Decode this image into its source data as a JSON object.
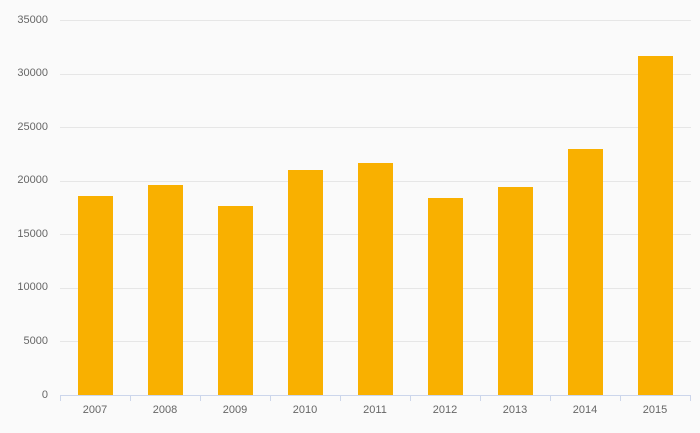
{
  "chart_data": {
    "type": "bar",
    "title": "",
    "xlabel": "",
    "ylabel": "",
    "categories": [
      "2007",
      "2008",
      "2009",
      "2010",
      "2011",
      "2012",
      "2013",
      "2014",
      "2015"
    ],
    "values": [
      18600,
      19600,
      17600,
      21000,
      21700,
      18400,
      19400,
      23000,
      31600
    ],
    "ylim": [
      0,
      35000
    ],
    "ytick_step": 5000,
    "ytick_labels": [
      "0",
      "5000",
      "10000",
      "15000",
      "20000",
      "25000",
      "30000",
      "35000"
    ],
    "grid": true,
    "legend": false,
    "colors": {
      "bar": "#F9B000",
      "background": "#FAFAFA",
      "gridline": "#E6E6E6",
      "axis_line": "#CCD6EB",
      "label": "#666666"
    }
  }
}
